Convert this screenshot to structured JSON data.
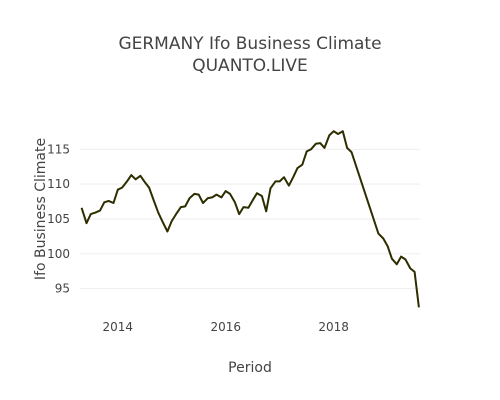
{
  "chart_data": {
    "type": "line",
    "title": "GERMANY Ifo Business Climate",
    "subtitle": "QUANTO.LIVE",
    "xlabel": "Period",
    "ylabel": "Ifo Business Climate",
    "xlim": [
      2013.3,
      2019.6
    ],
    "ylim": [
      91.5,
      119.5
    ],
    "x_ticks": [
      {
        "value": 2014,
        "label": "2014"
      },
      {
        "value": 2016,
        "label": "2016"
      },
      {
        "value": 2018,
        "label": "2018"
      }
    ],
    "y_ticks": [
      {
        "value": 95,
        "label": "95"
      },
      {
        "value": 100,
        "label": "100"
      },
      {
        "value": 105,
        "label": "105"
      },
      {
        "value": 110,
        "label": "110"
      },
      {
        "value": 115,
        "label": "115"
      }
    ],
    "grid": true,
    "legend": "none",
    "line_color": "#2d2d00",
    "series": [
      {
        "x": [
          2013.33,
          2013.42,
          2013.5,
          2013.58,
          2013.67,
          2013.75,
          2013.83,
          2013.92,
          2014.0,
          2014.08,
          2014.17,
          2014.25,
          2014.33,
          2014.42,
          2014.5,
          2014.58,
          2014.67,
          2014.75,
          2014.83,
          2014.92,
          2015.0,
          2015.08,
          2015.17,
          2015.25,
          2015.33,
          2015.42,
          2015.5,
          2015.58,
          2015.67,
          2015.75,
          2015.83,
          2015.92,
          2016.0,
          2016.08,
          2016.17,
          2016.25,
          2016.33,
          2016.42,
          2016.5,
          2016.58,
          2016.67,
          2016.75,
          2016.83,
          2016.92,
          2017.0,
          2017.08,
          2017.17,
          2017.25,
          2017.33,
          2017.42,
          2017.5,
          2017.58,
          2017.67,
          2017.75,
          2017.83,
          2017.92,
          2018.0,
          2018.08,
          2018.17,
          2018.25,
          2018.33,
          2018.83,
          2018.92,
          2019.0,
          2019.08,
          2019.17,
          2019.25,
          2019.33,
          2019.42,
          2019.5,
          2019.58
        ],
        "y": [
          106.6,
          104.4,
          105.7,
          105.9,
          106.2,
          107.4,
          107.6,
          107.3,
          109.2,
          109.5,
          110.4,
          111.3,
          110.7,
          111.2,
          110.3,
          109.5,
          107.6,
          105.9,
          104.6,
          103.2,
          104.7,
          105.7,
          106.7,
          106.8,
          108.0,
          108.6,
          108.5,
          107.3,
          108.0,
          108.1,
          108.5,
          108.1,
          109.0,
          108.6,
          107.4,
          105.7,
          106.7,
          106.6,
          107.7,
          108.7,
          108.3,
          106.1,
          109.4,
          110.4,
          110.4,
          111.0,
          109.8,
          111.0,
          112.3,
          112.8,
          114.7,
          115.0,
          115.8,
          115.9,
          115.2,
          117.0,
          117.6,
          117.2,
          117.6,
          115.2,
          114.6,
          102.9,
          102.2,
          101.1,
          99.3,
          98.5,
          99.6,
          99.2,
          97.9,
          97.4,
          92.3
        ]
      }
    ]
  }
}
